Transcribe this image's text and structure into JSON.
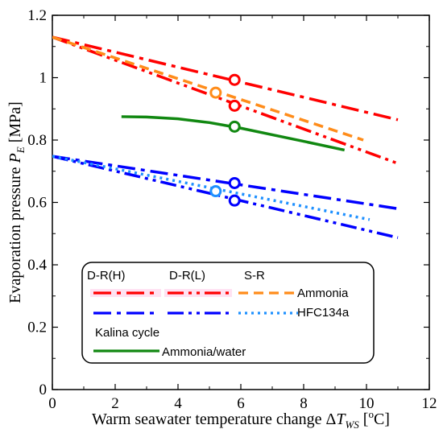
{
  "chart_data": {
    "type": "line",
    "title": "",
    "xlabel": {
      "main": "Warm seawater temperature change Δ",
      "symbol": "T",
      "subscript": "WS",
      "unit_open": " [",
      "unit_sup": "o",
      "unit_close": "C]"
    },
    "ylabel": {
      "main": "Evaporation pressure ",
      "symbol": "P",
      "subscript": "E",
      "unit": " [MPa]"
    },
    "xlim": [
      0,
      12
    ],
    "ylim": [
      0,
      1.2
    ],
    "xticks": [
      "0",
      "2",
      "4",
      "6",
      "8",
      "10",
      "12"
    ],
    "yticks": [
      "0",
      "0.2",
      "0.4",
      "0.6",
      "0.8",
      "1",
      "1.2"
    ],
    "grid": false,
    "legend": {
      "placement": "bottom",
      "headers": [
        "D-R(H)",
        "D-R(L)",
        "S-R"
      ],
      "rows": [
        "Ammonia",
        "HFC134a"
      ],
      "kalina_title": "Kalina cycle",
      "kalina_label": "Ammonia/water"
    },
    "series": [
      {
        "name": "Ammonia D-R(H)",
        "color": "#ff0000",
        "style": "dashdot",
        "x": [
          0,
          11
        ],
        "y": [
          1.13,
          0.865
        ],
        "marker": {
          "x": 5.8,
          "y": 0.993
        }
      },
      {
        "name": "Ammonia D-R(L)",
        "color": "#ff0000",
        "style": "dashdotdot",
        "x": [
          0,
          11
        ],
        "y": [
          1.13,
          0.725
        ],
        "marker": {
          "x": 5.8,
          "y": 0.91
        }
      },
      {
        "name": "Ammonia S-R",
        "color": "#ff8c1a",
        "style": "dashed",
        "x": [
          0,
          9.9
        ],
        "y": [
          1.13,
          0.8
        ],
        "marker": {
          "x": 5.2,
          "y": 0.952
        }
      },
      {
        "name": "HFC134a D-R(H)",
        "color": "#0000ff",
        "style": "dashdot",
        "x": [
          0,
          11
        ],
        "y": [
          0.748,
          0.58
        ],
        "marker": {
          "x": 5.8,
          "y": 0.662
        }
      },
      {
        "name": "HFC134a D-R(L)",
        "color": "#0000ff",
        "style": "dashdotdot",
        "x": [
          0,
          11
        ],
        "y": [
          0.748,
          0.487
        ],
        "marker": {
          "x": 5.8,
          "y": 0.606
        }
      },
      {
        "name": "HFC134a S-R",
        "color": "#1e90ff",
        "style": "dotted",
        "x": [
          0,
          10.1
        ],
        "y": [
          0.748,
          0.545
        ],
        "marker": {
          "x": 5.2,
          "y": 0.636
        }
      },
      {
        "name": "Kalina cycle Ammonia/water",
        "color": "#118811",
        "style": "solid",
        "x": [
          2.2,
          3.0,
          4.0,
          5.0,
          6.0,
          7.0,
          8.0,
          9.3
        ],
        "y": [
          0.875,
          0.874,
          0.868,
          0.856,
          0.838,
          0.817,
          0.796,
          0.768
        ],
        "marker": {
          "x": 5.8,
          "y": 0.843
        }
      }
    ]
  }
}
